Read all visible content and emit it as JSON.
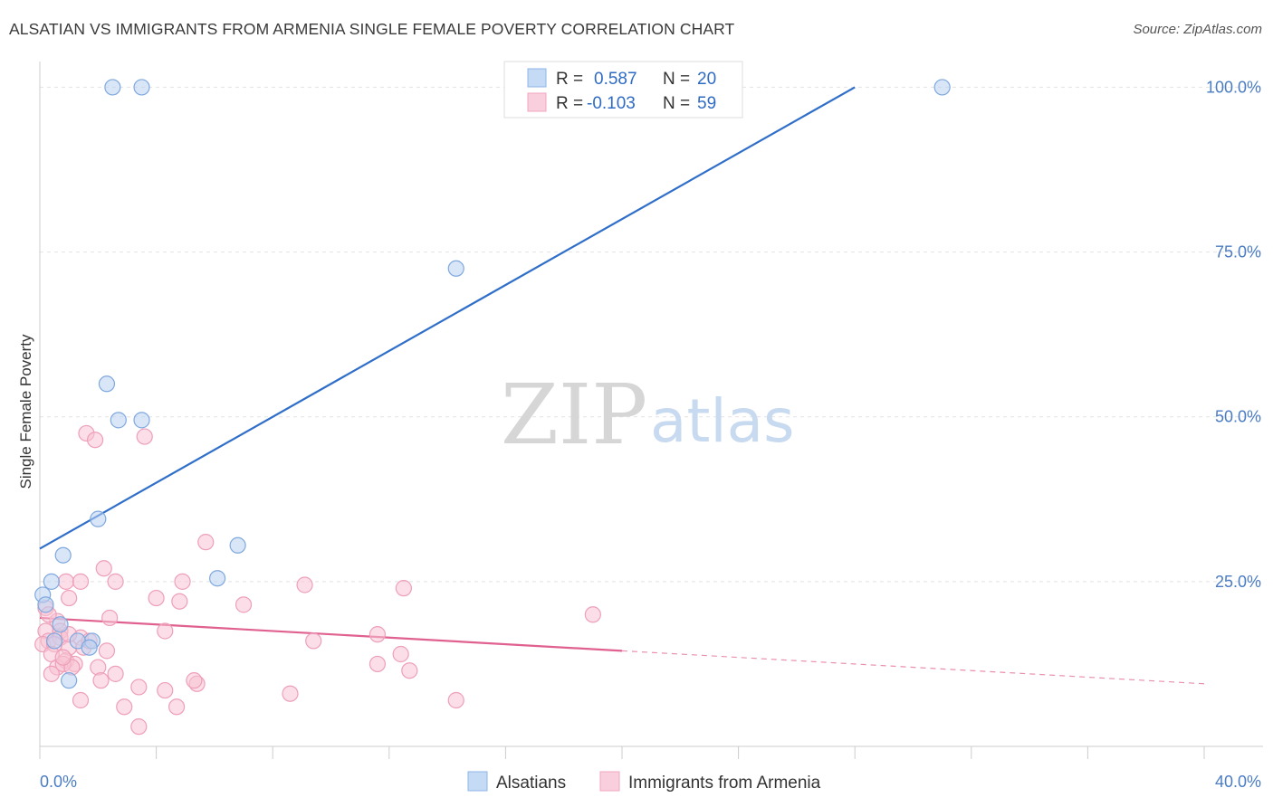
{
  "header": {
    "title": "ALSATIAN VS IMMIGRANTS FROM ARMENIA SINGLE FEMALE POVERTY CORRELATION CHART",
    "source": "Source: ZipAtlas.com"
  },
  "watermark": {
    "part1": "ZIP",
    "part2": "atlas"
  },
  "legend": {
    "rows": [
      {
        "r_label": "R =",
        "r_value": "0.587",
        "n_label": "N =",
        "n_value": "20",
        "color": "#8fb6e8"
      },
      {
        "r_label": "R =",
        "r_value": "-0.103",
        "n_label": "N =",
        "n_value": "59",
        "color": "#f2a6bf"
      }
    ]
  },
  "bottom_legend": [
    {
      "label": "Alsatians",
      "color": "#8fb6e8"
    },
    {
      "label": "Immigrants from Armenia",
      "color": "#f2a6bf"
    }
  ],
  "colors": {
    "blue": "#2f6ec9",
    "pink": "#e0608f",
    "blue_fill": "#b9d2f2",
    "pink_fill": "#f7c3d4"
  },
  "chart_data": {
    "type": "scatter",
    "title": "ALSATIAN VS IMMIGRANTS FROM ARMENIA SINGLE FEMALE POVERTY CORRELATION CHART",
    "xlabel": "",
    "ylabel": "Single Female Poverty",
    "xlim": [
      0,
      40
    ],
    "ylim": [
      0,
      105
    ],
    "x_tick_labels": [
      "0.0%",
      "40.0%"
    ],
    "y_ticks": [
      25,
      50,
      75,
      100
    ],
    "y_tick_labels": [
      "25.0%",
      "50.0%",
      "75.0%",
      "100.0%"
    ],
    "grid": true,
    "legend_position": "top-center",
    "series": [
      {
        "name": "Alsatians",
        "color": "#2f6ec9",
        "points": [
          [
            2.5,
            100
          ],
          [
            3.5,
            100
          ],
          [
            31,
            100
          ],
          [
            14.3,
            72.5
          ],
          [
            2.3,
            55
          ],
          [
            2.7,
            49.5
          ],
          [
            3.5,
            49.5
          ],
          [
            2.0,
            34.5
          ],
          [
            0.8,
            29
          ],
          [
            6.8,
            30.5
          ],
          [
            6.1,
            25.5
          ],
          [
            0.4,
            25
          ],
          [
            0.1,
            23
          ],
          [
            0.2,
            21.5
          ],
          [
            0.7,
            18.5
          ],
          [
            0.5,
            16
          ],
          [
            1.8,
            16
          ],
          [
            1.3,
            16
          ],
          [
            1.7,
            15
          ],
          [
            1.0,
            10
          ]
        ],
        "trend": {
          "x": [
            0,
            28
          ],
          "y": [
            30,
            100
          ]
        }
      },
      {
        "name": "Immigrants from Armenia",
        "color": "#e0608f",
        "points": [
          [
            1.6,
            47.5
          ],
          [
            1.9,
            46.5
          ],
          [
            3.6,
            47
          ],
          [
            5.7,
            31
          ],
          [
            2.2,
            27
          ],
          [
            0.9,
            25
          ],
          [
            1.4,
            25
          ],
          [
            2.6,
            25
          ],
          [
            4.9,
            25
          ],
          [
            9.1,
            24.5
          ],
          [
            12.5,
            24
          ],
          [
            1.0,
            22.5
          ],
          [
            4.0,
            22.5
          ],
          [
            4.8,
            22
          ],
          [
            7.0,
            21.5
          ],
          [
            2.4,
            19.5
          ],
          [
            19.0,
            20
          ],
          [
            0.2,
            21
          ],
          [
            0.6,
            19
          ],
          [
            0.2,
            17.5
          ],
          [
            0.7,
            17.5
          ],
          [
            0.3,
            16
          ],
          [
            0.7,
            16.5
          ],
          [
            1.4,
            16.5
          ],
          [
            4.3,
            17.5
          ],
          [
            9.4,
            16
          ],
          [
            11.6,
            17
          ],
          [
            0.1,
            15.5
          ],
          [
            0.5,
            15.5
          ],
          [
            1.0,
            15
          ],
          [
            1.5,
            15
          ],
          [
            2.3,
            14.5
          ],
          [
            0.4,
            14
          ],
          [
            0.9,
            13
          ],
          [
            1.2,
            12.5
          ],
          [
            0.6,
            12
          ],
          [
            0.8,
            12.5
          ],
          [
            1.1,
            12
          ],
          [
            2.0,
            12
          ],
          [
            12.4,
            14
          ],
          [
            11.6,
            12.5
          ],
          [
            12.7,
            11.5
          ],
          [
            2.6,
            11
          ],
          [
            2.1,
            10
          ],
          [
            5.4,
            9.5
          ],
          [
            5.3,
            10
          ],
          [
            3.4,
            9
          ],
          [
            4.3,
            8.5
          ],
          [
            8.6,
            8
          ],
          [
            1.4,
            7
          ],
          [
            14.3,
            7
          ],
          [
            2.9,
            6
          ],
          [
            4.7,
            6
          ],
          [
            3.4,
            3
          ],
          [
            0.4,
            11
          ],
          [
            1.7,
            16
          ],
          [
            0.3,
            20
          ],
          [
            0.8,
            13.5
          ],
          [
            1.0,
            17
          ]
        ],
        "trend": {
          "x": [
            0,
            20
          ],
          "y": [
            19.5,
            14.5
          ]
        },
        "trend_dashed": {
          "x": [
            20,
            40
          ],
          "y": [
            14.5,
            9.5
          ]
        }
      }
    ]
  }
}
